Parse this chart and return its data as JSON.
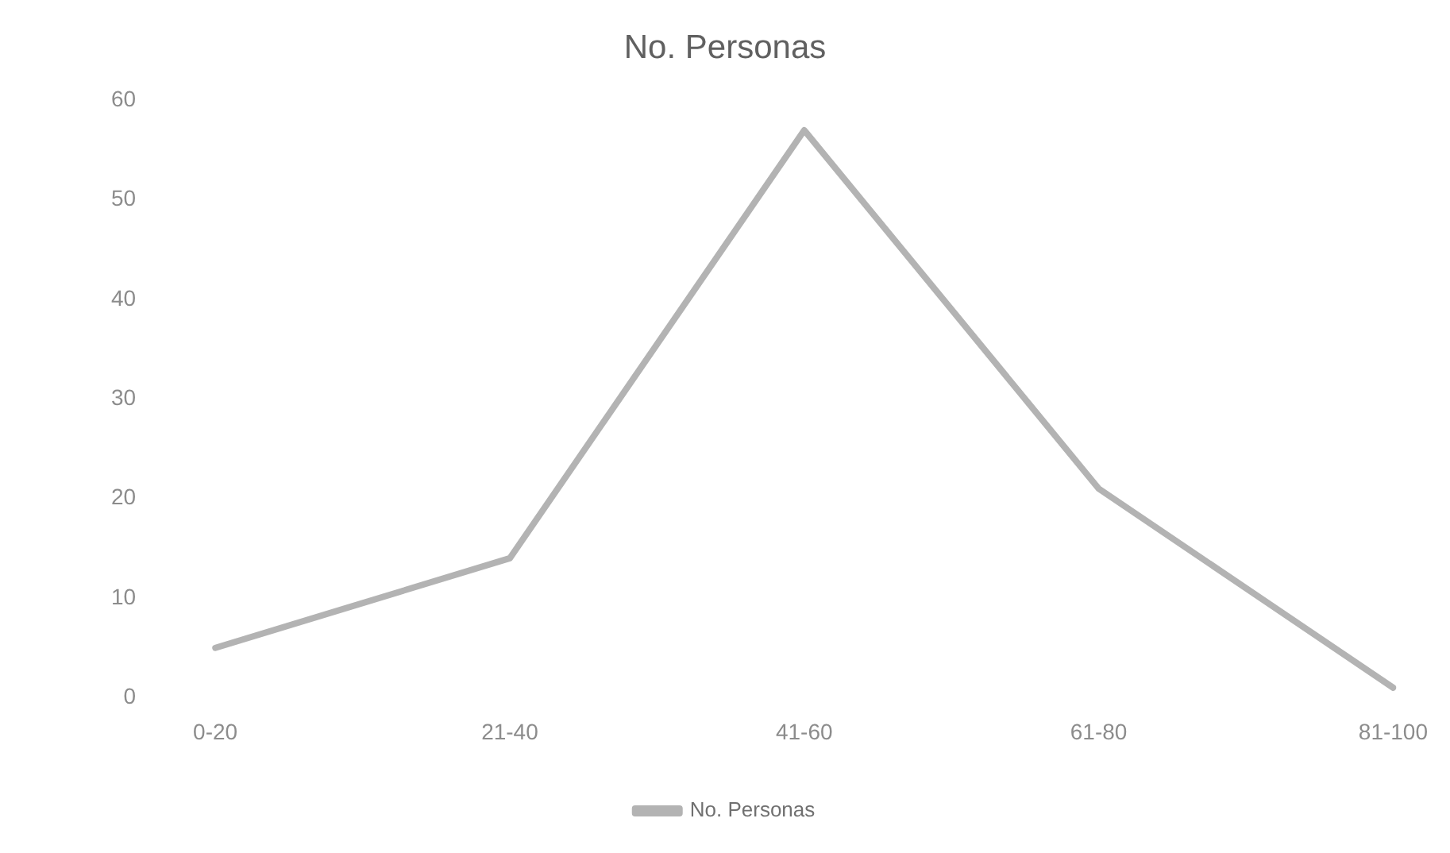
{
  "chart_data": {
    "type": "line",
    "title": "No. Personas",
    "categories": [
      "0-20",
      "21-40",
      "41-60",
      "61-80",
      "81-100"
    ],
    "series": [
      {
        "name": "No. Personas",
        "color": "#b3b3b3",
        "values": [
          5,
          14,
          57,
          21,
          1
        ]
      }
    ],
    "ylim": [
      0,
      60
    ],
    "yticks": [
      0,
      10,
      20,
      30,
      40,
      50,
      60
    ],
    "grid": false,
    "legend": "bottom",
    "marker": "none",
    "line_style": "solid"
  }
}
